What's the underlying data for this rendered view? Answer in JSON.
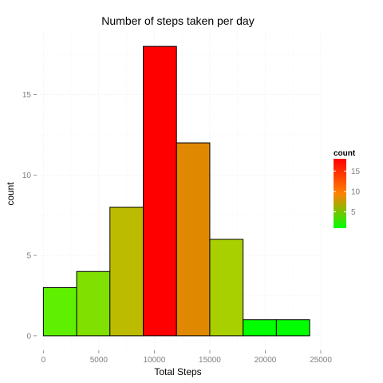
{
  "chart_data": {
    "type": "bar",
    "title": "Number of steps taken per day",
    "xlabel": "Total Steps",
    "ylabel": "count",
    "bin_width": 3000,
    "bins": [
      {
        "x_start": 0,
        "x_end": 3000,
        "count": 3
      },
      {
        "x_start": 3000,
        "x_end": 6000,
        "count": 4
      },
      {
        "x_start": 6000,
        "x_end": 9000,
        "count": 8
      },
      {
        "x_start": 9000,
        "x_end": 12000,
        "count": 18
      },
      {
        "x_start": 12000,
        "x_end": 15000,
        "count": 12
      },
      {
        "x_start": 15000,
        "x_end": 18000,
        "count": 6
      },
      {
        "x_start": 18000,
        "x_end": 21000,
        "count": 1
      },
      {
        "x_start": 21000,
        "x_end": 24000,
        "count": 1
      }
    ],
    "xlim": [
      -600,
      25000
    ],
    "ylim": [
      -0.9,
      18.9
    ],
    "x_ticks": [
      0,
      5000,
      10000,
      15000,
      20000,
      25000
    ],
    "x_tick_labels": [
      "0",
      "5000",
      "10000",
      "15000",
      "20000",
      "25000"
    ],
    "y_ticks": [
      0,
      5,
      10,
      15
    ],
    "y_tick_labels": [
      "0",
      "5",
      "10",
      "15"
    ],
    "grid": true,
    "legend": {
      "title": "count",
      "placement": "right",
      "type": "colorbar",
      "low_color": "#00ff00",
      "high_color": "#ff0000",
      "range": [
        1,
        18
      ],
      "ticks": [
        5,
        10,
        15
      ],
      "tick_labels": [
        "5",
        "10",
        "15"
      ]
    }
  }
}
